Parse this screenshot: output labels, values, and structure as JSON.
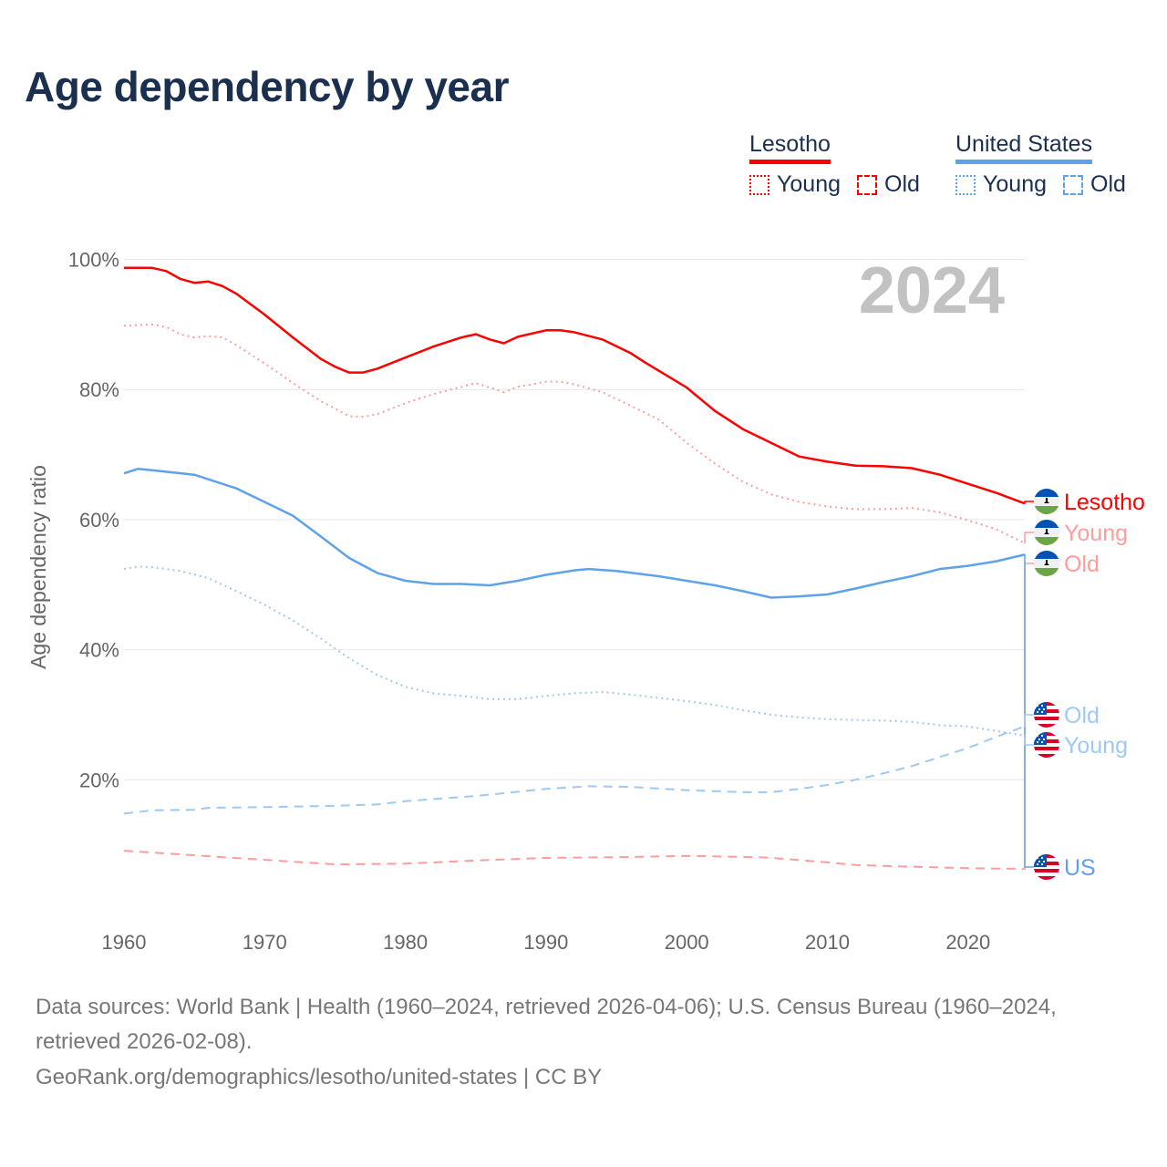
{
  "title": "Age dependency by year",
  "legend": {
    "groups": [
      {
        "name": "Lesotho",
        "color": "#ff0000",
        "items": [
          "Young",
          "Old"
        ]
      },
      {
        "name": "United States",
        "color": "#5ea3ea",
        "items": [
          "Young",
          "Old"
        ]
      }
    ]
  },
  "chart_data": {
    "type": "line",
    "ylabel": "Age dependency ratio",
    "xlabel": "",
    "ylim": [
      0,
      100
    ],
    "xlim": [
      1960,
      2024
    ],
    "yticks": [
      "20%",
      "40%",
      "60%",
      "80%",
      "100%"
    ],
    "ytick_values": [
      20,
      40,
      60,
      80,
      100
    ],
    "xticks": [
      "1960",
      "1970",
      "1980",
      "1990",
      "2000",
      "2010",
      "2020"
    ],
    "xtick_values": [
      1960,
      1970,
      1980,
      1990,
      2000,
      2010,
      2020
    ],
    "year_watermark": "2024",
    "grid": true,
    "series": [
      {
        "name": "Lesotho",
        "label": "Lesotho",
        "country": "lesotho",
        "style": "solid",
        "color": "#ff0000",
        "x": [
          1960,
          1962,
          1963,
          1964,
          1965,
          1966,
          1967,
          1968,
          1970,
          1972,
          1974,
          1975,
          1976,
          1977,
          1978,
          1980,
          1982,
          1984,
          1985,
          1986,
          1987,
          1988,
          1990,
          1991,
          1992,
          1994,
          1996,
          1997,
          2000,
          2002,
          2004,
          2006,
          2008,
          2010,
          2012,
          2014,
          2016,
          2018,
          2020,
          2022,
          2024
        ],
        "y": [
          98.7,
          98.7,
          98.2,
          97,
          96.4,
          96.6,
          95.9,
          94.7,
          91.5,
          88,
          84.7,
          83.5,
          82.6,
          82.6,
          83.2,
          84.9,
          86.6,
          88,
          88.5,
          87.7,
          87.1,
          88.1,
          89.1,
          89.1,
          88.8,
          87.7,
          85.6,
          84.2,
          80.3,
          76.7,
          73.9,
          71.8,
          69.7,
          68.9,
          68.3,
          68.2,
          67.9,
          66.9,
          65.5,
          64.1,
          62.5
        ]
      },
      {
        "name": "Lesotho Young",
        "label": "Young",
        "country": "lesotho",
        "style": "dotted",
        "color": "#ff9c9c",
        "x": [
          1960,
          1962,
          1963,
          1964,
          1965,
          1966,
          1967,
          1968,
          1970,
          1972,
          1974,
          1976,
          1977,
          1978,
          1980,
          1982,
          1984,
          1985,
          1986,
          1987,
          1988,
          1990,
          1991,
          1992,
          1994,
          1996,
          1998,
          2000,
          2002,
          2004,
          2006,
          2008,
          2010,
          2012,
          2014,
          2016,
          2018,
          2020,
          2022,
          2024
        ],
        "y": [
          89.8,
          90,
          89.6,
          88.5,
          88,
          88.2,
          88,
          86.8,
          84,
          81,
          78.2,
          75.9,
          75.8,
          76.2,
          77.9,
          79.3,
          80.4,
          81,
          80.3,
          79.6,
          80.4,
          81.2,
          81.2,
          80.8,
          79.6,
          77.5,
          75.4,
          71.8,
          68.6,
          65.8,
          63.9,
          62.7,
          62,
          61.6,
          61.6,
          61.8,
          61.1,
          59.9,
          58.5,
          56.4
        ]
      },
      {
        "name": "Lesotho Old",
        "label": "Old",
        "country": "lesotho",
        "style": "dashed",
        "color": "#ff9c9c",
        "x": [
          1960,
          1965,
          1970,
          1975,
          1980,
          1985,
          1990,
          1995,
          2000,
          2005,
          2006,
          2010,
          2012,
          2015,
          2020,
          2024
        ],
        "y": [
          9.1,
          8.4,
          7.7,
          7,
          7.1,
          7.6,
          8,
          8.1,
          8.3,
          8.1,
          8,
          7.3,
          6.9,
          6.7,
          6.4,
          6.3
        ]
      },
      {
        "name": "United States",
        "label": "US",
        "country": "us",
        "style": "solid",
        "color": "#5ea3ea",
        "x": [
          1960,
          1961,
          1962,
          1965,
          1966,
          1968,
          1970,
          1972,
          1974,
          1976,
          1978,
          1980,
          1982,
          1984,
          1986,
          1988,
          1990,
          1992,
          1993,
          1995,
          1998,
          2000,
          2002,
          2004,
          2006,
          2008,
          2010,
          2012,
          2014,
          2016,
          2018,
          2020,
          2022,
          2024
        ],
        "y": [
          67.1,
          67.8,
          67.6,
          66.9,
          66.2,
          64.8,
          62.7,
          60.6,
          57.4,
          54.1,
          51.8,
          50.6,
          50.1,
          50.1,
          49.9,
          50.6,
          51.5,
          52.2,
          52.4,
          52.1,
          51.3,
          50.6,
          49.9,
          49,
          48,
          48.2,
          48.5,
          49.4,
          50.4,
          51.3,
          52.4,
          52.9,
          53.6,
          54.6
        ]
      },
      {
        "name": "United States Young",
        "label": "Young",
        "country": "us",
        "style": "dotted",
        "color": "#9fc8f3",
        "x": [
          1960,
          1961,
          1962,
          1964,
          1966,
          1968,
          1970,
          1972,
          1974,
          1976,
          1978,
          1980,
          1982,
          1984,
          1986,
          1988,
          1990,
          1992,
          1994,
          1996,
          1998,
          2000,
          2002,
          2004,
          2006,
          2008,
          2010,
          2014,
          2016,
          2018,
          2020,
          2022,
          2024
        ],
        "y": [
          52.4,
          52.8,
          52.7,
          52.1,
          51,
          49,
          46.9,
          44.5,
          41.7,
          38.7,
          36.1,
          34.3,
          33.3,
          32.9,
          32.4,
          32.4,
          32.9,
          33.3,
          33.5,
          33.1,
          32.6,
          32.1,
          31.5,
          30.7,
          30,
          29.6,
          29.3,
          29.1,
          28.9,
          28.4,
          28.2,
          27.5,
          26.8
        ]
      },
      {
        "name": "United States Old",
        "label": "Old",
        "country": "us",
        "style": "dashed",
        "color": "#9fc8f3",
        "x": [
          1960,
          1962,
          1965,
          1966,
          1970,
          1975,
          1978,
          1980,
          1985,
          1990,
          1993,
          1996,
          2000,
          2004,
          2006,
          2008,
          2010,
          2012,
          2014,
          2016,
          2018,
          2020,
          2022,
          2024
        ],
        "y": [
          14.8,
          15.3,
          15.4,
          15.7,
          15.8,
          16,
          16.2,
          16.7,
          17.5,
          18.6,
          19,
          18.9,
          18.4,
          18.1,
          18.1,
          18.6,
          19.2,
          20,
          21,
          22.1,
          23.5,
          24.9,
          26.6,
          28.2
        ]
      }
    ]
  },
  "footer": {
    "sources": "Data sources: World Bank | Health (1960–2024, retrieved 2026-04-06); U.S. Census Bureau (1960–2024, retrieved 2026-02-08).",
    "credit": "GeoRank.org/demographics/lesotho/united-states | CC BY"
  }
}
